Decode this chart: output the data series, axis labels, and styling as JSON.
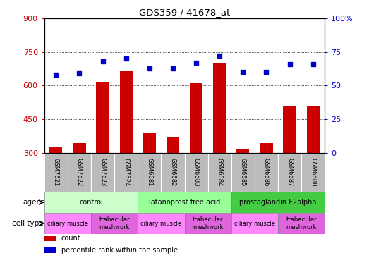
{
  "title": "GDS359 / 41678_at",
  "samples": [
    "GSM7621",
    "GSM7622",
    "GSM7623",
    "GSM7624",
    "GSM6681",
    "GSM6682",
    "GSM6683",
    "GSM6684",
    "GSM6685",
    "GSM6686",
    "GSM6687",
    "GSM6688"
  ],
  "counts": [
    330,
    345,
    615,
    665,
    390,
    370,
    610,
    700,
    315,
    345,
    510,
    510
  ],
  "percentiles": [
    58,
    59,
    68,
    70,
    63,
    63,
    67,
    72,
    60,
    60,
    66,
    66
  ],
  "ylim_left": [
    300,
    900
  ],
  "ylim_right": [
    0,
    100
  ],
  "yticks_left": [
    300,
    450,
    600,
    750,
    900
  ],
  "yticks_right": [
    0,
    25,
    50,
    75,
    100
  ],
  "yticklabels_right": [
    "0",
    "25",
    "50",
    "75",
    "100%"
  ],
  "agents": [
    {
      "label": "control",
      "start": 0,
      "end": 4,
      "color": "#ccffcc"
    },
    {
      "label": "latanoprost free acid",
      "start": 4,
      "end": 8,
      "color": "#99ff99"
    },
    {
      "label": "prostaglandin F2alpha",
      "start": 8,
      "end": 12,
      "color": "#44cc44"
    }
  ],
  "cell_types": [
    {
      "label": "ciliary muscle",
      "start": 0,
      "end": 2,
      "color": "#ff88ff"
    },
    {
      "label": "trabecular\nmeshwork",
      "start": 2,
      "end": 4,
      "color": "#dd66dd"
    },
    {
      "label": "ciliary muscle",
      "start": 4,
      "end": 6,
      "color": "#ff88ff"
    },
    {
      "label": "trabecular\nmeshwork",
      "start": 6,
      "end": 8,
      "color": "#dd66dd"
    },
    {
      "label": "ciliary muscle",
      "start": 8,
      "end": 10,
      "color": "#ff88ff"
    },
    {
      "label": "trabecular\nmeshwork",
      "start": 10,
      "end": 12,
      "color": "#dd66dd"
    }
  ],
  "bar_color": "#cc0000",
  "dot_color": "#0000cc",
  "label_color_left": "#cc0000",
  "label_color_right": "#0000cc",
  "sample_box_color": "#bbbbbb",
  "bar_bottom": 300,
  "legend_items": [
    {
      "label": "count",
      "color": "#cc0000"
    },
    {
      "label": "percentile rank within the sample",
      "color": "#0000cc"
    }
  ]
}
